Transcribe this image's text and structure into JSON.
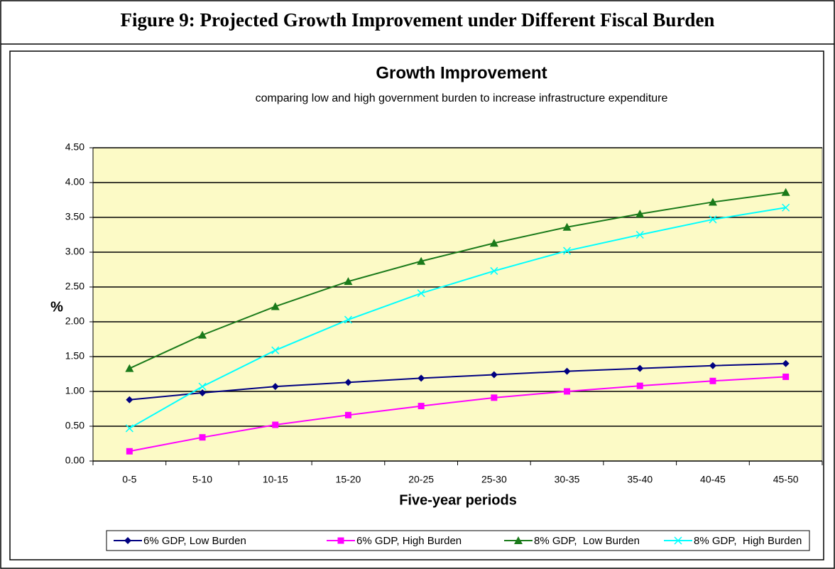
{
  "figure_title": "Figure 9: Projected Growth Improvement under Different Fiscal Burden",
  "chart_data": {
    "type": "line",
    "title": "Growth Improvement",
    "subtitle": "comparing low and high government burden to increase infrastructure expenditure",
    "y_label": "%",
    "x_label": "Five-year periods",
    "categories": [
      "0-5",
      "5-10",
      "10-15",
      "15-20",
      "20-25",
      "25-30",
      "30-35",
      "35-40",
      "40-45",
      "45-50"
    ],
    "series": [
      {
        "name": "6% GDP, Low Burden",
        "color": "#000080",
        "marker": "diamond",
        "values": [
          0.88,
          0.98,
          1.07,
          1.13,
          1.19,
          1.24,
          1.29,
          1.33,
          1.37,
          1.4
        ]
      },
      {
        "name": "6% GDP, High Burden",
        "color": "#ff00ff",
        "marker": "square",
        "values": [
          0.14,
          0.34,
          0.52,
          0.66,
          0.79,
          0.91,
          1.0,
          1.08,
          1.15,
          1.21
        ]
      },
      {
        "name": "8% GDP,  Low Burden",
        "color": "#1a7a1a",
        "marker": "triangle",
        "values": [
          1.33,
          1.81,
          2.22,
          2.58,
          2.87,
          3.13,
          3.36,
          3.55,
          3.72,
          3.86
        ]
      },
      {
        "name": "8% GDP,  High Burden",
        "color": "#00ffff",
        "marker": "x",
        "values": [
          0.47,
          1.07,
          1.59,
          2.03,
          2.41,
          2.73,
          3.02,
          3.25,
          3.47,
          3.64
        ]
      }
    ],
    "ylim": [
      0,
      4.5
    ],
    "yticks": [
      {
        "value": 0,
        "label": "0.00"
      },
      {
        "value": 0.5,
        "label": "0.50"
      },
      {
        "value": 1,
        "label": "1.00"
      },
      {
        "value": 1.5,
        "label": "1.50"
      },
      {
        "value": 2,
        "label": "2.00"
      },
      {
        "value": 2.5,
        "label": "2.50"
      },
      {
        "value": 3,
        "label": "3.00"
      },
      {
        "value": 3.5,
        "label": "3.50"
      },
      {
        "value": 4,
        "label": "4.00"
      },
      {
        "value": 4.5,
        "label": "4.50"
      }
    ],
    "grid": true,
    "plot_background": "#fcfac6",
    "legend": "bottom"
  }
}
